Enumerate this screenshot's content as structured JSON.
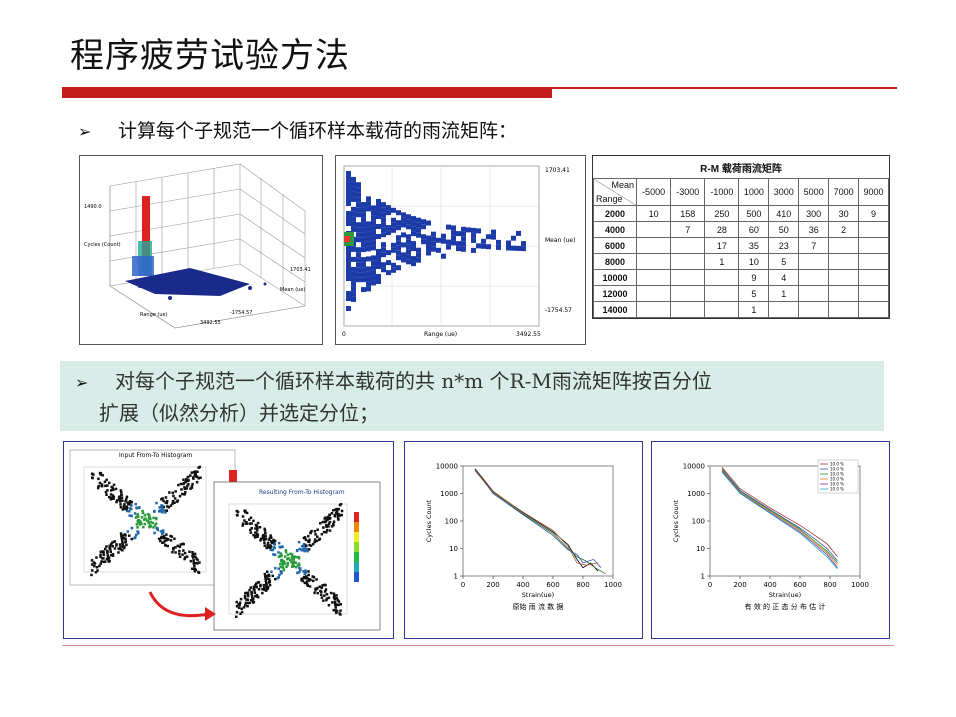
{
  "title": "程序疲劳试验方法",
  "bullets": [
    "计算每个子规范一个循环样本载荷的雨流矩阵：",
    "对每个子规范一个循环样本载荷的共 n*m 个R-M雨流矩阵按百分位",
    "扩展（似然分析）并选定分位；"
  ],
  "arrow": "➢",
  "chart3d": {
    "ticks": [
      "Cycles (Count)",
      "1490.0",
      "1703.41",
      "Range (ue)",
      "3492.55",
      "-1754.57",
      "Mean (ue)"
    ]
  },
  "heatmap": {
    "y_top": "1703.41",
    "y_bottom": "-1754.57",
    "y_label": "Mean (ue)",
    "x_left": "0",
    "x_right": "3492.55",
    "x_label": "Range (ue)"
  },
  "rm_table": {
    "caption": "R-M 载荷雨流矩阵",
    "corner_top": "Mean",
    "corner_bottom": "Range",
    "means": [
      "-5000",
      "-3000",
      "-1000",
      "1000",
      "3000",
      "5000",
      "7000",
      "9000"
    ],
    "rows": [
      {
        "range": "2000",
        "cells": [
          "10",
          "158",
          "250",
          "500",
          "410",
          "300",
          "30",
          "9"
        ]
      },
      {
        "range": "4000",
        "cells": [
          "",
          "7",
          "28",
          "60",
          "50",
          "36",
          "2",
          ""
        ]
      },
      {
        "range": "6000",
        "cells": [
          "",
          "",
          "17",
          "35",
          "23",
          "7",
          "",
          ""
        ]
      },
      {
        "range": "8000",
        "cells": [
          "",
          "",
          "1",
          "10",
          "5",
          "",
          "",
          ""
        ]
      },
      {
        "range": "10000",
        "cells": [
          "",
          "",
          "",
          "9",
          "4",
          "",
          "",
          ""
        ]
      },
      {
        "range": "12000",
        "cells": [
          "",
          "",
          "",
          "5",
          "1",
          "",
          "",
          ""
        ]
      },
      {
        "range": "14000",
        "cells": [
          "",
          "",
          "",
          "1",
          "",
          "",
          "",
          ""
        ]
      }
    ]
  },
  "histograms": {
    "input_title": "Input From-To Histogram",
    "result_title": "Resulting From-To Histogram"
  },
  "chart_data": [
    {
      "type": "line",
      "title": "",
      "xlabel": "Strain(ue)",
      "ylabel": "Cycles Count",
      "caption": "原始 雨 流 数 据",
      "x_ticks": [
        "0",
        "200",
        "400",
        "600",
        "800",
        "1000"
      ],
      "y_ticks": [
        "1",
        "10",
        "100",
        "1000",
        "10000"
      ],
      "ylim": [
        1,
        10000
      ],
      "xlim": [
        0,
        1000
      ],
      "yscale": "log",
      "series": [
        {
          "color": "#000000",
          "points": [
            [
              80,
              8000
            ],
            [
              200,
              1200
            ],
            [
              400,
              200
            ],
            [
              600,
              40
            ],
            [
              700,
              14
            ],
            [
              760,
              4
            ],
            [
              800,
              2
            ],
            [
              850,
              3
            ],
            [
              900,
              1.5
            ]
          ]
        },
        {
          "color": "#2a6e2a",
          "points": [
            [
              80,
              7000
            ],
            [
              200,
              1100
            ],
            [
              400,
              180
            ],
            [
              600,
              35
            ],
            [
              700,
              10
            ],
            [
              760,
              5
            ],
            [
              820,
              3.5
            ],
            [
              880,
              2
            ],
            [
              950,
              1.2
            ]
          ]
        },
        {
          "color": "#3355aa",
          "points": [
            [
              80,
              7500
            ],
            [
              200,
              1000
            ],
            [
              400,
              170
            ],
            [
              600,
              30
            ],
            [
              700,
              9
            ],
            [
              760,
              6
            ],
            [
              800,
              3
            ],
            [
              870,
              4
            ],
            [
              920,
              2
            ]
          ]
        },
        {
          "color": "#aa5533",
          "points": [
            [
              80,
              6800
            ],
            [
              200,
              1150
            ],
            [
              400,
              210
            ],
            [
              600,
              45
            ],
            [
              700,
              12
            ],
            [
              760,
              3
            ],
            [
              820,
              2.5
            ],
            [
              900,
              3
            ]
          ]
        }
      ]
    },
    {
      "type": "line",
      "title": "",
      "xlabel": "Strain(ue)",
      "ylabel": "Cycles Count",
      "caption": "有 效 的 正 态 分 布 估 计",
      "x_ticks": [
        "0",
        "200",
        "400",
        "600",
        "800",
        "1000"
      ],
      "y_ticks": [
        "1",
        "10",
        "100",
        "1000",
        "10000"
      ],
      "ylim": [
        1,
        10000
      ],
      "xlim": [
        0,
        1000
      ],
      "yscale": "log",
      "legend": [
        "10.0 %",
        "10.0 %",
        "10.0 %",
        "10.0 %",
        "10.0 %",
        "10.0 %"
      ],
      "series": [
        {
          "color": "#aa3333",
          "points": [
            [
              80,
              9000
            ],
            [
              200,
              1500
            ],
            [
              400,
              300
            ],
            [
              600,
              70
            ],
            [
              700,
              30
            ],
            [
              780,
              15
            ],
            [
              850,
              5
            ]
          ]
        },
        {
          "color": "#3355aa",
          "points": [
            [
              80,
              8000
            ],
            [
              200,
              1300
            ],
            [
              400,
              260
            ],
            [
              600,
              55
            ],
            [
              700,
              22
            ],
            [
              780,
              10
            ],
            [
              850,
              3.5
            ]
          ]
        },
        {
          "color": "#2a8a2a",
          "points": [
            [
              80,
              7500
            ],
            [
              200,
              1200
            ],
            [
              400,
              240
            ],
            [
              600,
              50
            ],
            [
              700,
              18
            ],
            [
              780,
              8
            ],
            [
              850,
              3
            ]
          ]
        },
        {
          "color": "#d08020",
          "points": [
            [
              80,
              7000
            ],
            [
              200,
              1100
            ],
            [
              400,
              220
            ],
            [
              600,
              45
            ],
            [
              700,
              16
            ],
            [
              780,
              7
            ],
            [
              850,
              2.5
            ]
          ]
        },
        {
          "color": "#7733aa",
          "points": [
            [
              80,
              6500
            ],
            [
              200,
              1050
            ],
            [
              400,
              200
            ],
            [
              600,
              40
            ],
            [
              700,
              14
            ],
            [
              780,
              6
            ],
            [
              850,
              2
            ]
          ]
        },
        {
          "color": "#22aacc",
          "points": [
            [
              80,
              6000
            ],
            [
              200,
              1000
            ],
            [
              400,
              190
            ],
            [
              600,
              36
            ],
            [
              700,
              12
            ],
            [
              780,
              5
            ],
            [
              850,
              1.8
            ]
          ]
        }
      ]
    }
  ]
}
